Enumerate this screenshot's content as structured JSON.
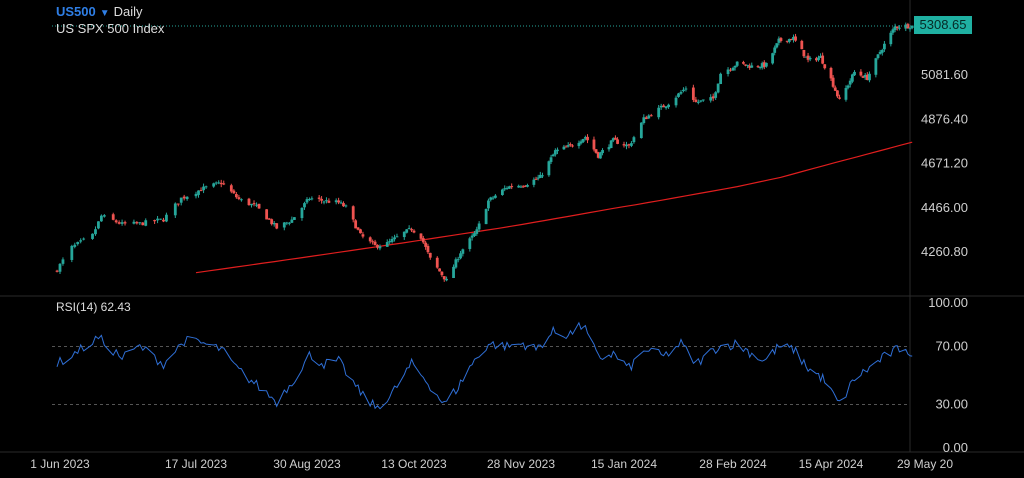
{
  "header": {
    "symbol": "US500",
    "period": "Daily",
    "description": "US SPX 500 Index"
  },
  "last_price": "5308.65",
  "rsi_label": "RSI(14) 62.43",
  "colors": {
    "background": "#000000",
    "up": "#26a69a",
    "down": "#ef5350",
    "ma": "#e01e1e",
    "rsi": "#2f6fd6",
    "symbol": "#2f7fe6",
    "price_tag": "#1fb0a2"
  },
  "chart_data": [
    {
      "type": "candlestick",
      "price_ticks": [
        "5081.60",
        "4876.40",
        "4671.20",
        "4466.00",
        "4260.80"
      ],
      "price_tick_values": [
        5081.6,
        4876.4,
        4671.2,
        4466.0,
        4260.8
      ],
      "x_ticks": [
        "1 Jun 2023",
        "17 Jul 2023",
        "30 Aug 2023",
        "13 Oct 2023",
        "28 Nov 2023",
        "15 Jan 2024",
        "28 Feb 2024",
        "15 Apr 2024",
        "29 May 20"
      ],
      "x_tick_dates": [
        "2023-06-01",
        "2023-07-17",
        "2023-08-30",
        "2023-10-13",
        "2023-11-28",
        "2024-01-15",
        "2024-02-28",
        "2024-04-15",
        "2024-05-29"
      ],
      "date_range": [
        "2023-05-31",
        "2024-05-23"
      ],
      "ylim": [
        4165,
        5365
      ],
      "close_anchors": [
        [
          "2023-05-31",
          4180
        ],
        [
          "2023-06-05",
          4282
        ],
        [
          "2023-06-12",
          4338
        ],
        [
          "2023-06-15",
          4428
        ],
        [
          "2023-06-22",
          4390
        ],
        [
          "2023-06-28",
          4392
        ],
        [
          "2023-07-06",
          4412
        ],
        [
          "2023-07-12",
          4510
        ],
        [
          "2023-07-19",
          4552
        ],
        [
          "2023-07-27",
          4582
        ],
        [
          "2023-08-03",
          4505
        ],
        [
          "2023-08-10",
          4470
        ],
        [
          "2023-08-18",
          4372
        ],
        [
          "2023-08-24",
          4410
        ],
        [
          "2023-08-31",
          4510
        ],
        [
          "2023-09-06",
          4498
        ],
        [
          "2023-09-12",
          4490
        ],
        [
          "2023-09-15",
          4468
        ],
        [
          "2023-09-21",
          4338
        ],
        [
          "2023-09-27",
          4288
        ],
        [
          "2023-10-02",
          4300
        ],
        [
          "2023-10-09",
          4350
        ],
        [
          "2023-10-12",
          4368
        ],
        [
          "2023-10-16",
          4332
        ],
        [
          "2023-10-20",
          4228
        ],
        [
          "2023-10-27",
          4128
        ],
        [
          "2023-11-02",
          4260
        ],
        [
          "2023-11-09",
          4358
        ],
        [
          "2023-11-14",
          4498
        ],
        [
          "2023-11-22",
          4562
        ],
        [
          "2023-11-30",
          4575
        ],
        [
          "2023-12-07",
          4608
        ],
        [
          "2023-12-14",
          4728
        ],
        [
          "2023-12-21",
          4752
        ],
        [
          "2023-12-28",
          4795
        ],
        [
          "2024-01-03",
          4708
        ],
        [
          "2024-01-10",
          4778
        ],
        [
          "2024-01-17",
          4752
        ],
        [
          "2024-01-23",
          4878
        ],
        [
          "2024-02-02",
          4952
        ],
        [
          "2024-02-09",
          5022
        ],
        [
          "2024-02-13",
          4955
        ],
        [
          "2024-02-20",
          4972
        ],
        [
          "2024-02-23",
          5090
        ],
        [
          "2024-03-01",
          5135
        ],
        [
          "2024-03-08",
          5122
        ],
        [
          "2024-03-15",
          5128
        ],
        [
          "2024-03-21",
          5240
        ],
        [
          "2024-03-28",
          5252
        ],
        [
          "2024-04-04",
          5148
        ],
        [
          "2024-04-10",
          5165
        ],
        [
          "2024-04-15",
          5062
        ],
        [
          "2024-04-19",
          4962
        ],
        [
          "2024-04-26",
          5095
        ],
        [
          "2024-05-02",
          5068
        ],
        [
          "2024-05-08",
          5190
        ],
        [
          "2024-05-15",
          5305
        ],
        [
          "2024-05-20",
          5310
        ],
        [
          "2024-05-23",
          5308.65
        ]
      ],
      "ma_line": {
        "start": [
          "2023-07-17",
          4165
        ],
        "end": [
          "2024-05-23",
          4770
        ],
        "shape": [
          [
            0,
            0
          ],
          [
            0.4,
            0.34
          ],
          [
            0.6,
            0.52
          ],
          [
            0.8,
            0.73
          ],
          [
            1,
            1
          ]
        ]
      }
    },
    {
      "type": "line",
      "name": "RSI(14)",
      "ylim": [
        0,
        100
      ],
      "y_ticks": [
        "100.00",
        "70.00",
        "30.00",
        "0.00"
      ],
      "y_tick_values": [
        100,
        70,
        30,
        0
      ],
      "guide_levels": [
        70,
        30
      ],
      "anchors": [
        [
          "2023-05-31",
          58
        ],
        [
          "2023-06-08",
          68
        ],
        [
          "2023-06-14",
          76
        ],
        [
          "2023-06-22",
          62
        ],
        [
          "2023-06-28",
          70
        ],
        [
          "2023-07-06",
          58
        ],
        [
          "2023-07-13",
          74
        ],
        [
          "2023-07-20",
          72
        ],
        [
          "2023-07-27",
          68
        ],
        [
          "2023-08-02",
          55
        ],
        [
          "2023-08-09",
          45
        ],
        [
          "2023-08-18",
          32
        ],
        [
          "2023-08-25",
          48
        ],
        [
          "2023-08-31",
          64
        ],
        [
          "2023-09-06",
          58
        ],
        [
          "2023-09-12",
          60
        ],
        [
          "2023-09-20",
          40
        ],
        [
          "2023-09-27",
          28
        ],
        [
          "2023-10-03",
          35
        ],
        [
          "2023-10-12",
          58
        ],
        [
          "2023-10-19",
          45
        ],
        [
          "2023-10-26",
          30
        ],
        [
          "2023-11-01",
          42
        ],
        [
          "2023-11-06",
          56
        ],
        [
          "2023-11-14",
          72
        ],
        [
          "2023-11-22",
          70
        ],
        [
          "2023-11-29",
          72
        ],
        [
          "2023-12-05",
          68
        ],
        [
          "2023-12-13",
          80
        ],
        [
          "2023-12-20",
          78
        ],
        [
          "2023-12-27",
          85
        ],
        [
          "2024-01-03",
          62
        ],
        [
          "2024-01-10",
          65
        ],
        [
          "2024-01-17",
          55
        ],
        [
          "2024-01-24",
          68
        ],
        [
          "2024-01-31",
          63
        ],
        [
          "2024-02-07",
          72
        ],
        [
          "2024-02-13",
          58
        ],
        [
          "2024-02-22",
          70
        ],
        [
          "2024-03-01",
          72
        ],
        [
          "2024-03-08",
          65
        ],
        [
          "2024-03-14",
          60
        ],
        [
          "2024-03-21",
          70
        ],
        [
          "2024-03-28",
          68
        ],
        [
          "2024-04-04",
          55
        ],
        [
          "2024-04-11",
          48
        ],
        [
          "2024-04-19",
          30
        ],
        [
          "2024-04-26",
          48
        ],
        [
          "2024-05-03",
          55
        ],
        [
          "2024-05-09",
          62
        ],
        [
          "2024-05-16",
          68
        ],
        [
          "2024-05-20",
          70
        ],
        [
          "2024-05-23",
          62
        ]
      ]
    }
  ]
}
